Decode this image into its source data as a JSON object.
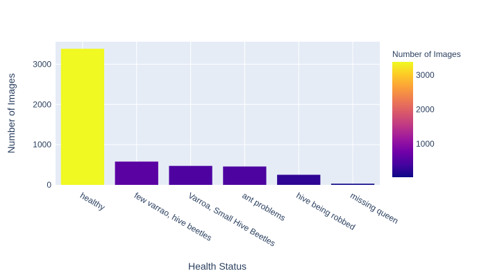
{
  "chart_data": {
    "type": "bar",
    "title": "",
    "xlabel": "Health Status",
    "ylabel": "Number of Images",
    "categories": [
      "healthy",
      "few varrao, hive beetles",
      "Varroa, Small Hive Beetles",
      "ant problems",
      "hive being robbed",
      "missing queen"
    ],
    "values": [
      3384,
      579,
      472,
      457,
      251,
      29
    ],
    "ylim": [
      0,
      3560
    ],
    "yticks": [
      0,
      1000,
      2000,
      3000
    ],
    "grid": true,
    "legend": "none",
    "colorscale": "plasma",
    "colorbar": {
      "title": "Number of Images",
      "range": [
        29,
        3384
      ],
      "ticks": [
        1000,
        2000,
        3000
      ]
    },
    "plot_background": "#e5ecf6",
    "text_color": "#2a3f5f"
  }
}
